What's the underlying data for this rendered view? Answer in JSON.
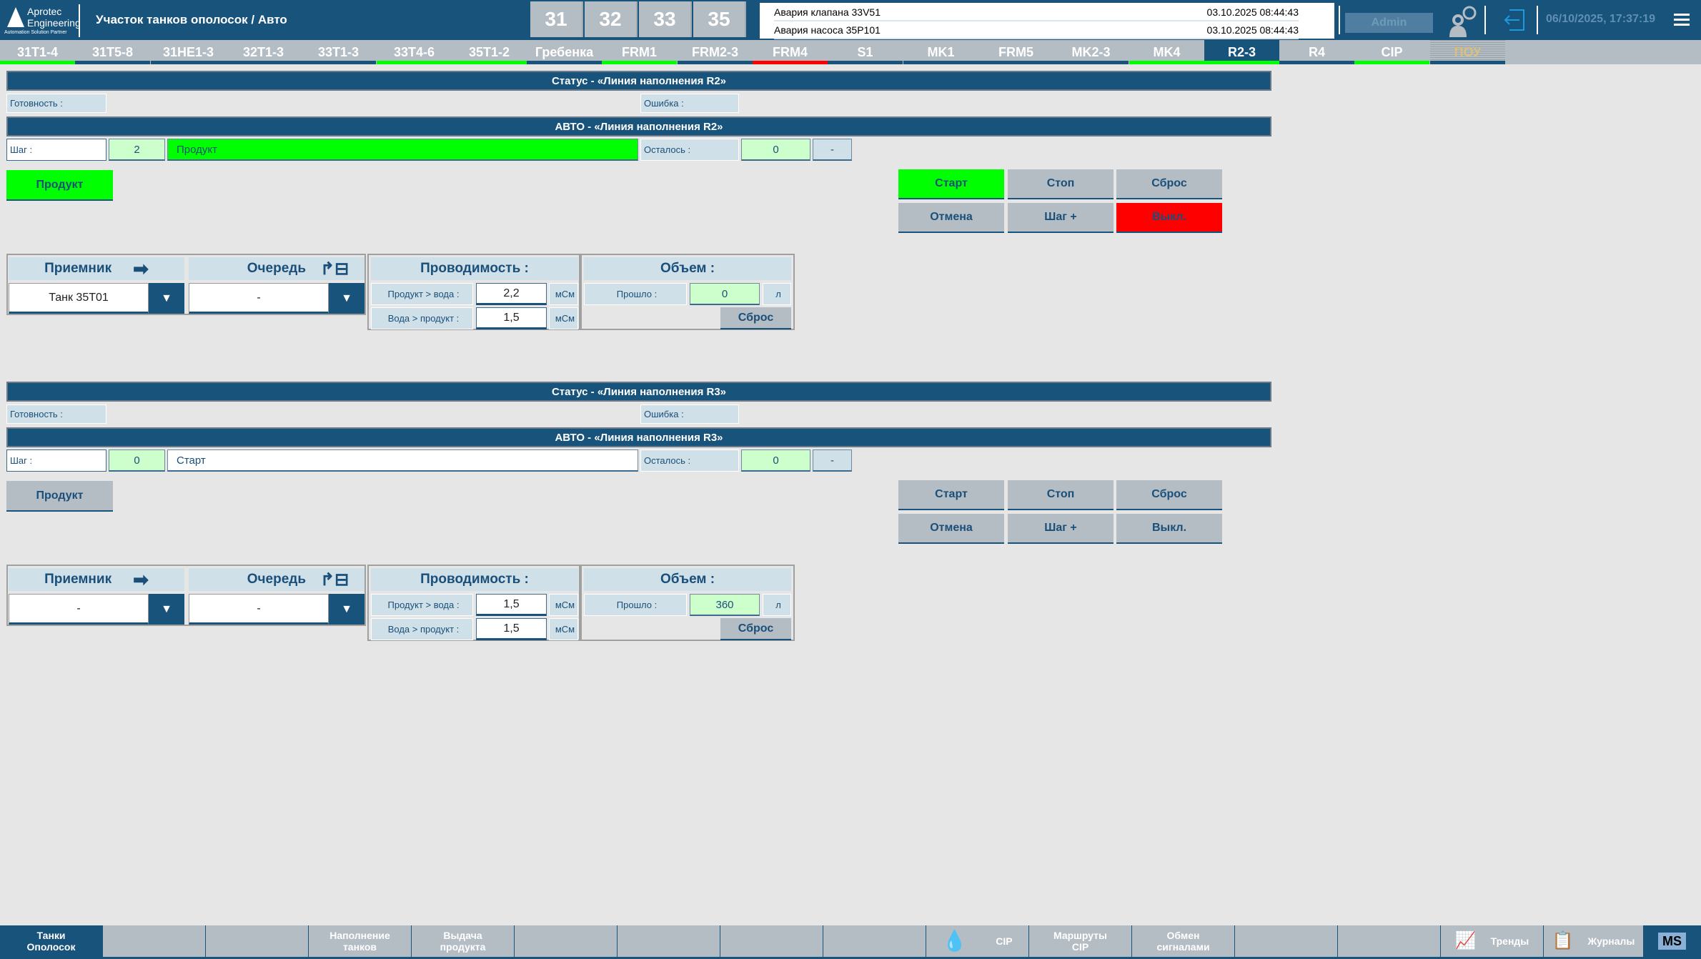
{
  "header": {
    "logo": {
      "line1": "Aprotec",
      "line2": "Engineering",
      "line3": "Automation Solution Partner"
    },
    "title": "Участок танков ополосок / Авто",
    "areas": [
      "31",
      "32",
      "33",
      "35"
    ],
    "alarms": [
      {
        "text": "Авария клапана 33V51",
        "time": "03.10.2025 08:44:43"
      },
      {
        "text": "Авария насоса 35P101",
        "time": "03.10.2025 08:44:43"
      }
    ],
    "user": "Admin",
    "datetime": "06/10/2025, 17:37:19"
  },
  "tabs": [
    {
      "label": "31T1-4",
      "status": "#00ff00"
    },
    {
      "label": "31T5-8",
      "status": "#18537c"
    },
    {
      "label": "31HE1-3",
      "status": "#18537c"
    },
    {
      "label": "32T1-3",
      "status": "#18537c"
    },
    {
      "label": "33T1-3",
      "status": "#18537c"
    },
    {
      "label": "33T4-6",
      "status": "#00ff00"
    },
    {
      "label": "35T1-2",
      "status": "#00ff00"
    },
    {
      "label": "Гребенка",
      "status": "#18537c"
    },
    {
      "label": "FRM1",
      "status": "#00ff00"
    },
    {
      "label": "FRM2-3",
      "status": "#18537c"
    },
    {
      "label": "FRM4",
      "status": "#ff0000"
    },
    {
      "label": "S1",
      "status": "#18537c"
    },
    {
      "label": "MK1",
      "status": "#18537c"
    },
    {
      "label": "FRM5",
      "status": "#18537c"
    },
    {
      "label": "MK2-3",
      "status": "#18537c"
    },
    {
      "label": "MK4",
      "status": "#00ff00"
    },
    {
      "label": "R2-3",
      "status": "#00ff00",
      "active": true
    },
    {
      "label": "R4",
      "status": "#18537c"
    },
    {
      "label": "CIP",
      "status": "#00ff00"
    },
    {
      "label": "ПОУ",
      "status": "#18537c",
      "disabled": true
    }
  ],
  "sections": [
    {
      "status_title": "Статус - «Линия наполнения R2»",
      "ready_label": "Готовность :",
      "error_label": "Ошибка :",
      "auto_title": "АВТО - «Линия наполнения R2»",
      "step_label": "Шаг :",
      "step_value": "2",
      "step_name": "Продукт",
      "step_active": true,
      "remaining_label": "Осталось :",
      "remaining_value": "0",
      "remaining_unit": "-",
      "mode_button": "Продукт",
      "mode_active": true,
      "controls": [
        {
          "label": "Старт",
          "color": "#00ff00"
        },
        {
          "label": "Стоп",
          "color": "#b4bcc4"
        },
        {
          "label": "Сброс",
          "color": "#b4bcc4"
        },
        {
          "label": "Отмена",
          "color": "#b4bcc4"
        },
        {
          "label": "Шаг +",
          "color": "#b4bcc4"
        },
        {
          "label": "Выкл.",
          "color": "#ff0000"
        }
      ],
      "receiver_label": "Приемник",
      "receiver_value": "Танк 35T01",
      "queue_label": "Очередь",
      "queue_value": "-",
      "conductivity_label": "Проводимость :",
      "pw_label": "Продукт > вода :",
      "pw_value": "2,2",
      "wp_label": "Вода > продукт :",
      "wp_value": "1,5",
      "cond_unit": "мСм",
      "volume_label": "Объем :",
      "passed_label": "Прошло :",
      "passed_value": "0",
      "volume_unit": "л",
      "reset_label": "Сброс"
    },
    {
      "status_title": "Статус - «Линия наполнения R3»",
      "ready_label": "Готовность :",
      "error_label": "Ошибка :",
      "auto_title": "АВТО - «Линия наполнения R3»",
      "step_label": "Шаг :",
      "step_value": "0",
      "step_name": "Старт",
      "step_active": false,
      "remaining_label": "Осталось :",
      "remaining_value": "0",
      "remaining_unit": "-",
      "mode_button": "Продукт",
      "mode_active": false,
      "controls": [
        {
          "label": "Старт",
          "color": "#b4bcc4"
        },
        {
          "label": "Стоп",
          "color": "#b4bcc4"
        },
        {
          "label": "Сброс",
          "color": "#b4bcc4"
        },
        {
          "label": "Отмена",
          "color": "#b4bcc4"
        },
        {
          "label": "Шаг +",
          "color": "#b4bcc4"
        },
        {
          "label": "Выкл.",
          "color": "#b4bcc4"
        }
      ],
      "receiver_label": "Приемник",
      "receiver_value": "-",
      "queue_label": "Очередь",
      "queue_value": "-",
      "conductivity_label": "Проводимость :",
      "pw_label": "Продукт > вода :",
      "pw_value": "1,5",
      "wp_label": "Вода > продукт :",
      "wp_value": "1,5",
      "cond_unit": "мСм",
      "volume_label": "Объем :",
      "passed_label": "Прошло :",
      "passed_value": "360",
      "volume_unit": "л",
      "reset_label": "Сброс"
    }
  ],
  "bottom_nav": [
    {
      "label": "Танки Ополосок",
      "active": true
    },
    {
      "label": ""
    },
    {
      "label": ""
    },
    {
      "label": "Наполнение танков"
    },
    {
      "label": "Выдача продукта"
    },
    {
      "label": ""
    },
    {
      "label": ""
    },
    {
      "label": ""
    },
    {
      "label": ""
    },
    {
      "label": "CIP",
      "icon": "water-drop-icon"
    },
    {
      "label": "Маршруты CIP"
    },
    {
      "label": "Обмен сигналами"
    },
    {
      "label": ""
    },
    {
      "label": ""
    },
    {
      "label": "Тренды",
      "icon": "trend-icon"
    },
    {
      "label": "Журналы",
      "icon": "journal-icon"
    },
    {
      "label": "MS",
      "icon": "ms-logo-icon"
    }
  ]
}
